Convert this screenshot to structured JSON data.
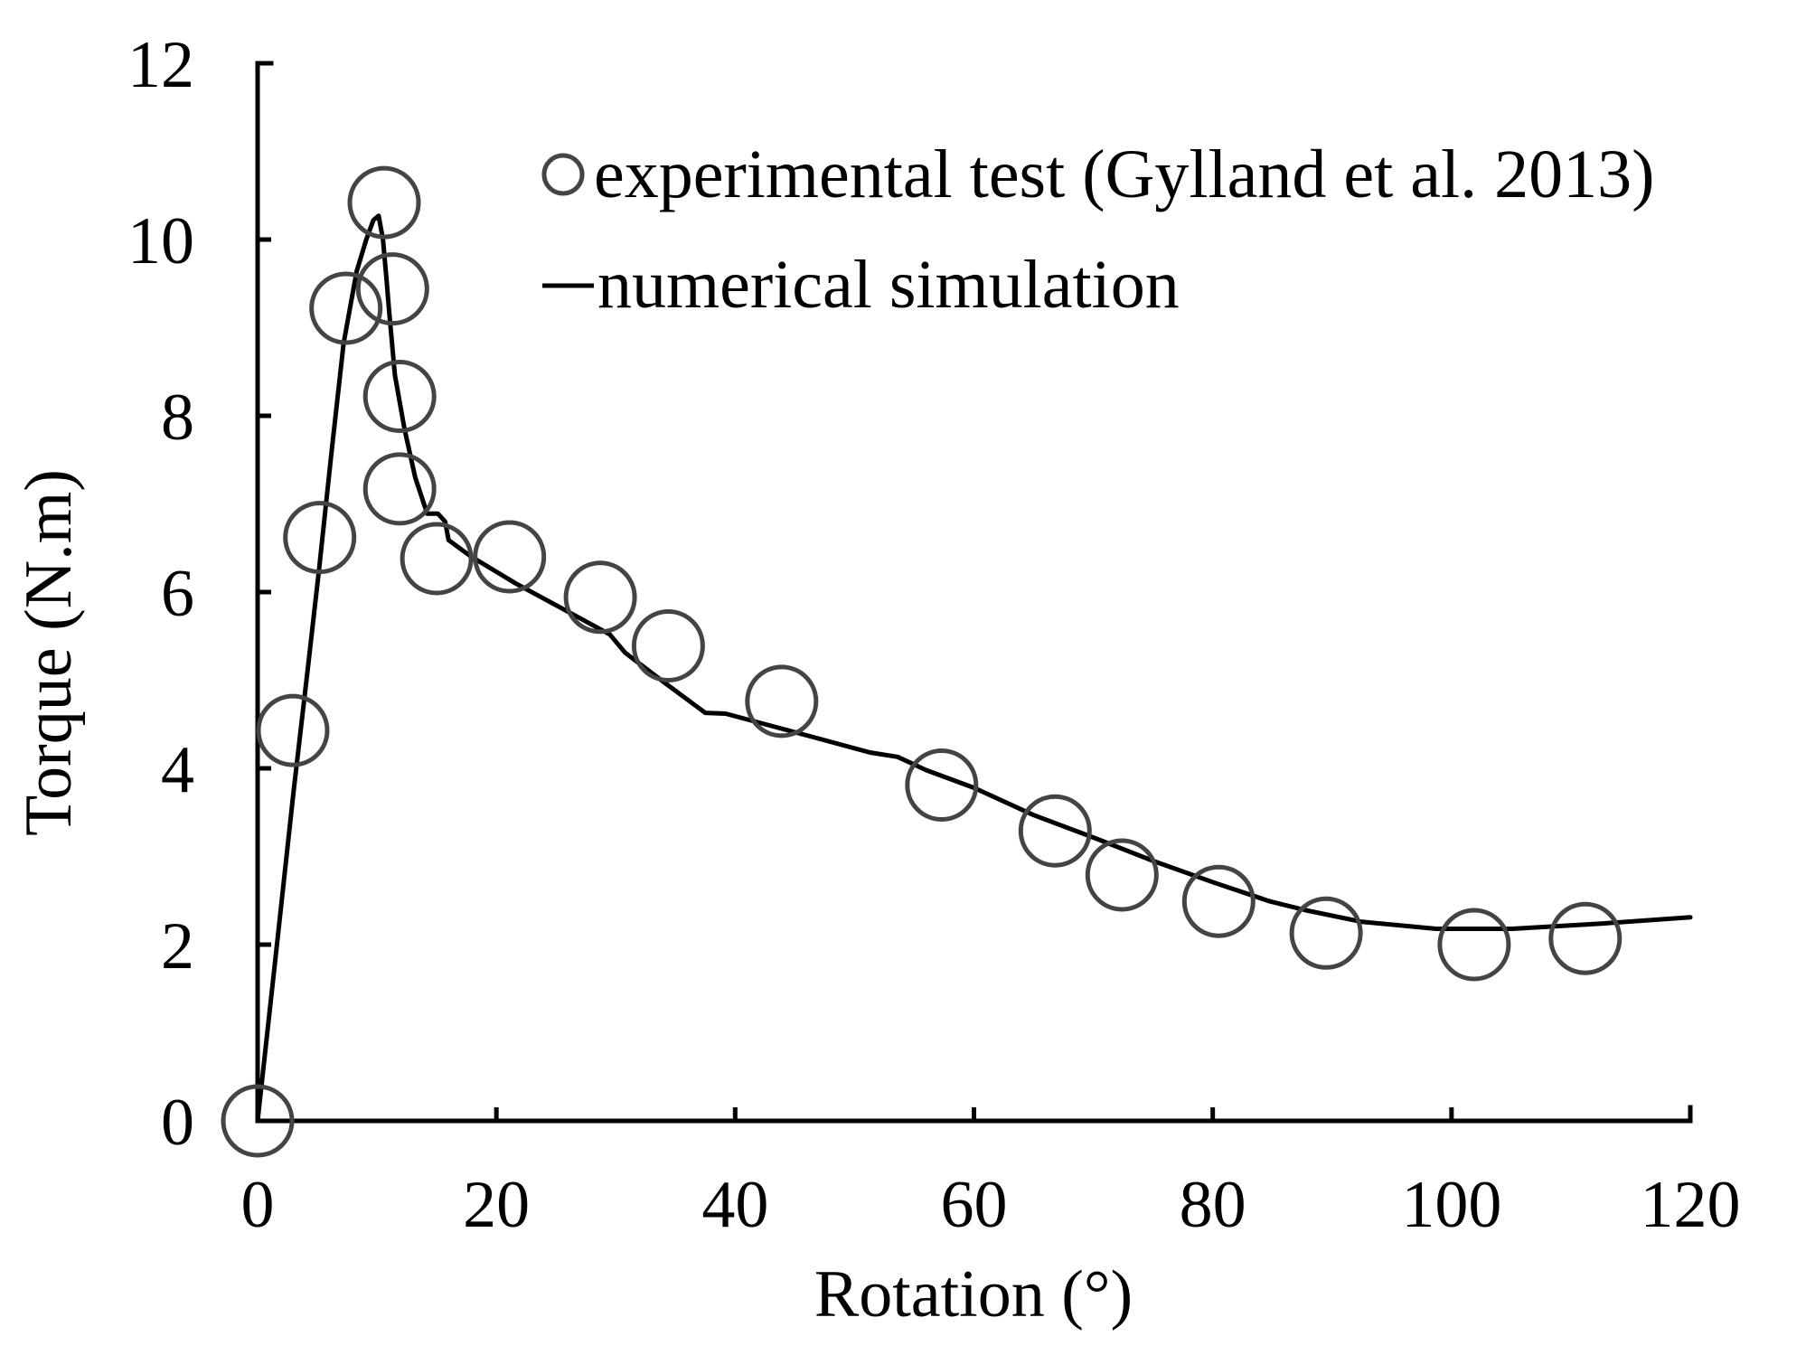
{
  "chart_data": {
    "type": "scatter",
    "title": "",
    "xlabel": "Rotation (°)",
    "ylabel": "Torque (N.m)",
    "xlim": [
      0,
      120
    ],
    "ylim": [
      0,
      12
    ],
    "xticks": [
      0,
      20,
      40,
      60,
      80,
      100,
      120
    ],
    "yticks": [
      0,
      2,
      4,
      6,
      8,
      10,
      12
    ],
    "grid": false,
    "legend_position": "upper right (inside plot)",
    "series": [
      {
        "name": "experimental test (Gylland et al. 2013)",
        "kind": "scatter",
        "marker": "open-circle",
        "color": "#444444",
        "x": [
          0,
          2.95,
          5.2,
          7.4,
          10.6,
          11.3,
          11.9,
          11.9,
          15.0,
          21.1,
          28.7,
          34.4,
          43.9,
          57.3,
          66.8,
          72.4,
          80.5,
          89.5,
          101.9,
          111.2
        ],
        "y": [
          0,
          4.43,
          6.62,
          9.22,
          10.42,
          9.44,
          8.22,
          7.17,
          6.38,
          6.4,
          5.94,
          5.39,
          4.76,
          3.81,
          3.29,
          2.79,
          2.49,
          2.13,
          2.0,
          2.07
        ]
      },
      {
        "name": "numerical simulation",
        "kind": "line",
        "color": "#000000",
        "x": [
          0,
          1.5,
          3.0,
          4.2,
          5.15,
          6.2,
          7.2,
          8.3,
          9.1,
          9.7,
          10.14,
          10.5,
          10.8,
          11.0,
          11.5,
          12.3,
          13.2,
          14.2,
          15.1,
          15.7,
          16.0,
          17.8,
          21.6,
          25.0,
          29.5,
          30.8,
          34.1,
          37.5,
          39.2,
          45.0,
          51.3,
          53.6,
          56.0,
          60.0,
          65.0,
          70.1,
          75.0,
          80.2,
          84.8,
          87.8,
          92.4,
          98.7,
          105.1,
          112.7,
          120.0
        ],
        "y": [
          0,
          1.85,
          3.72,
          5.13,
          6.26,
          7.6,
          8.82,
          9.64,
          10.0,
          10.22,
          10.27,
          10.0,
          9.55,
          9.21,
          8.46,
          7.85,
          7.3,
          6.89,
          6.89,
          6.8,
          6.59,
          6.41,
          6.1,
          5.85,
          5.52,
          5.31,
          4.97,
          4.63,
          4.62,
          4.41,
          4.18,
          4.13,
          3.98,
          3.78,
          3.47,
          3.21,
          2.95,
          2.7,
          2.49,
          2.39,
          2.26,
          2.18,
          2.18,
          2.24,
          2.31
        ]
      }
    ]
  },
  "axes": {
    "x_title": "Rotation (°)",
    "y_title": "Torque (N.m)",
    "x_tick_labels": [
      "0",
      "20",
      "40",
      "60",
      "80",
      "100",
      "120"
    ],
    "y_tick_labels": [
      "0",
      "2",
      "4",
      "6",
      "8",
      "10",
      "12"
    ]
  },
  "legend": {
    "items": [
      {
        "label": "experimental test (Gylland et al. 2013)",
        "symbol": "circle-icon"
      },
      {
        "label": "numerical simulation",
        "symbol": "line-icon"
      }
    ]
  },
  "colors": {
    "marker": "#444444",
    "line": "#000000",
    "axis": "#000000",
    "background": "#ffffff"
  }
}
